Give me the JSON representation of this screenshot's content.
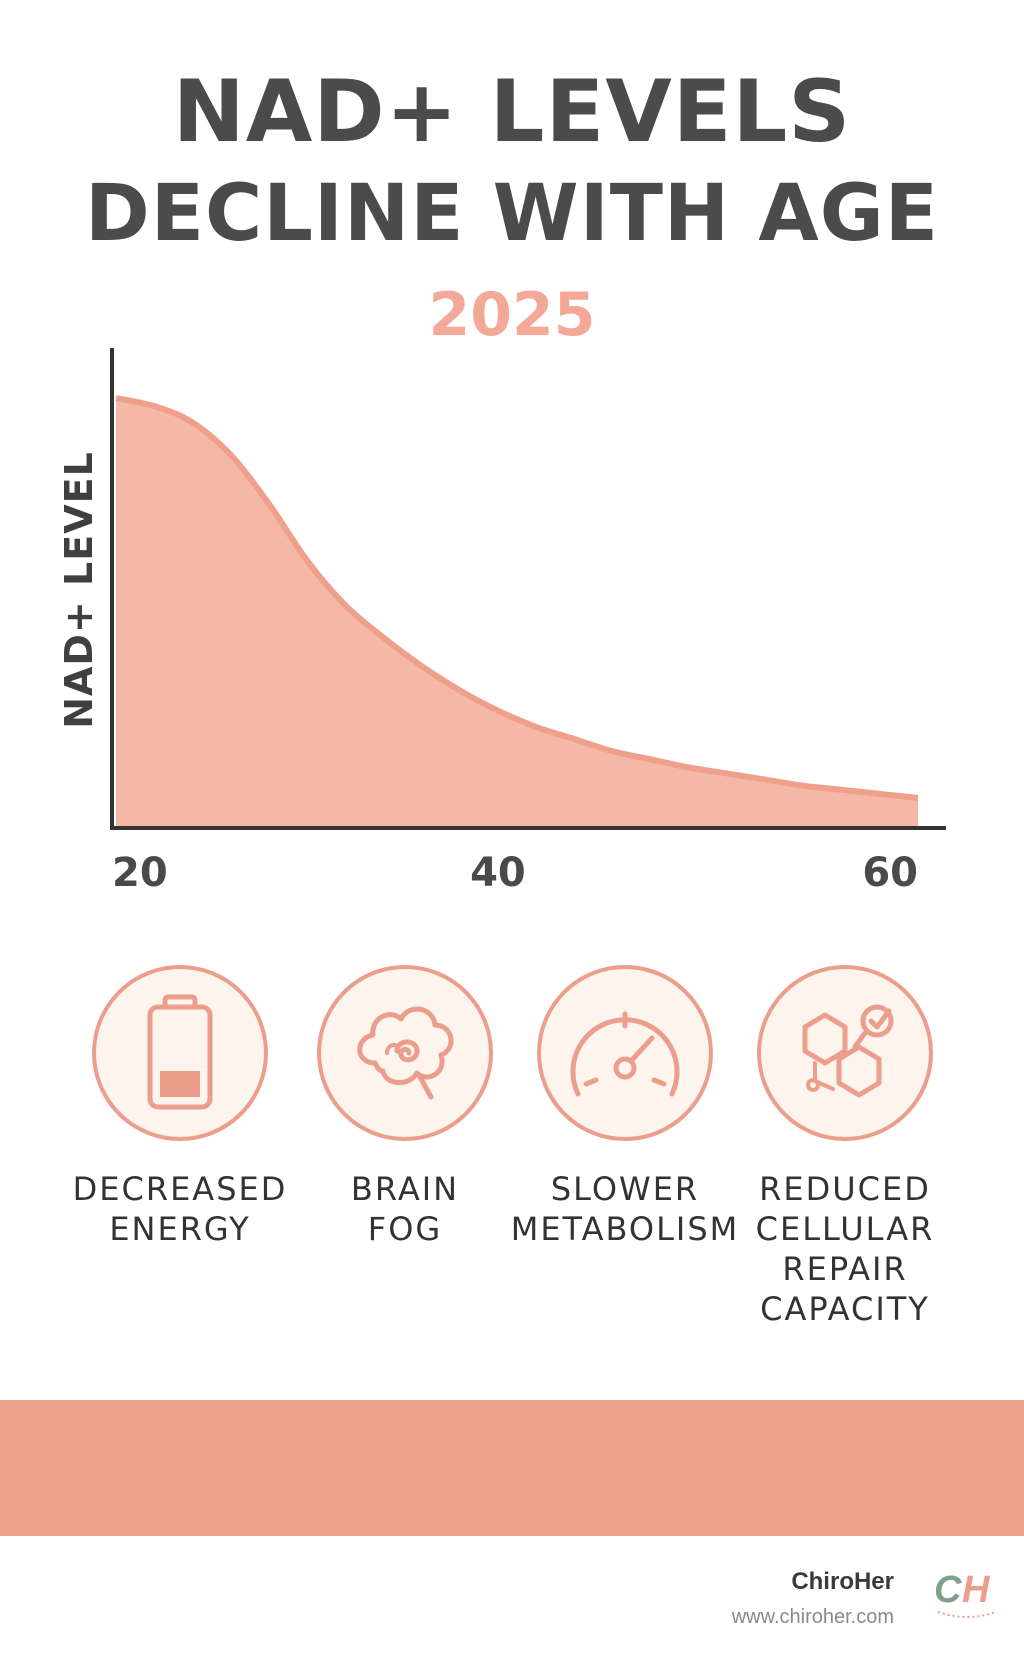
{
  "header": {
    "title_line1": "NAD+ LEVELS",
    "title_line2": "DECLINE WITH AGE",
    "year": "2025"
  },
  "chart_data": {
    "type": "area",
    "title": "NAD+ LEVELS DECLINE WITH AGE",
    "subtitle": "2025",
    "xlabel": "",
    "ylabel": "NAD+ LEVEL",
    "x_ticks": [
      20,
      40,
      60
    ],
    "xlim": [
      20,
      62
    ],
    "ylim": [
      0,
      100
    ],
    "grid": false,
    "legend": "none",
    "x": [
      20,
      22,
      24,
      26,
      28,
      30,
      32,
      34,
      36,
      38,
      40,
      42,
      44,
      46,
      48,
      50,
      52,
      54,
      56,
      58,
      60,
      62
    ],
    "values": [
      100,
      98,
      94,
      86,
      74,
      60,
      49,
      41,
      34,
      28,
      23,
      19,
      16,
      13,
      11,
      9,
      7.5,
      6,
      4.5,
      3.5,
      2.5,
      1.5
    ],
    "colors": {
      "fill": "#f6b8a6",
      "line": "#eea08a",
      "axis": "#333333"
    }
  },
  "effects": [
    {
      "icon": "battery-low-icon",
      "label": "DECREASED\nENERGY"
    },
    {
      "icon": "brain-fog-icon",
      "label": "BRAIN\nFOG"
    },
    {
      "icon": "speedometer-icon",
      "label": "SLOWER\nMETABOLISM"
    },
    {
      "icon": "cell-repair-icon",
      "label": "REDUCED\nCELLULAR\nREPAIR\nCAPACITY"
    }
  ],
  "footer": {
    "brand_name": "ChiroHer",
    "url": "www.chiroher.com",
    "logo_text": "CH",
    "accent_color": "#eea08a"
  }
}
